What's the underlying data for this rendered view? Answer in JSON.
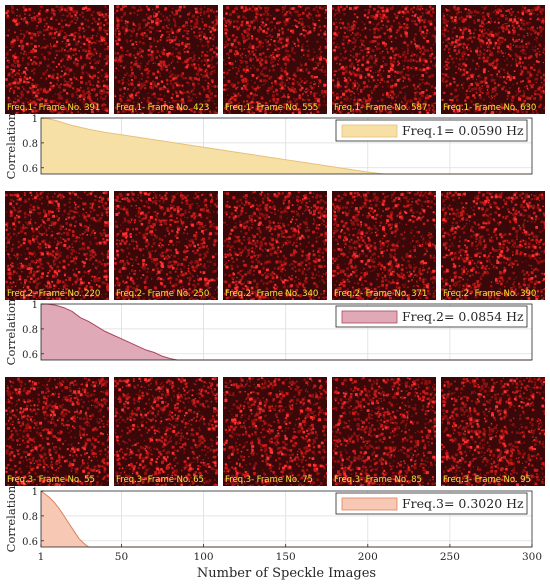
{
  "panels": [
    {
      "frame_labels": [
        "Freq.1- Frame No. 391",
        "Freq.1- Frame No. 423",
        "Freq.1- Frame No. 555",
        "Freq.1- Frame No. 587",
        "Freq.1- Frame No. 630"
      ],
      "chart": {
        "type": "area",
        "ylabel": "Correlation",
        "legend": "Freq.1= 0.0590 Hz",
        "legend_placement": "top-right",
        "fill_color": "#f7e0a6",
        "line_color": "#e8c178",
        "x": [
          1,
          5,
          10,
          20,
          30,
          40,
          50,
          60,
          70,
          80,
          90,
          100,
          110,
          120,
          130,
          140,
          150,
          160,
          170,
          180,
          190,
          200,
          210,
          215,
          300
        ],
        "y": [
          1.0,
          0.995,
          0.98,
          0.94,
          0.91,
          0.885,
          0.865,
          0.845,
          0.825,
          0.805,
          0.785,
          0.765,
          0.745,
          0.725,
          0.705,
          0.685,
          0.665,
          0.645,
          0.625,
          0.605,
          0.585,
          0.565,
          0.55,
          0.55,
          0.55
        ]
      }
    },
    {
      "frame_labels": [
        "Freq.2- Frame No. 220",
        "Freq.2- Frame No. 250",
        "Freq.2- Frame No. 340",
        "Freq.2- Frame No. 371",
        "Freq.2- Frame No. 390"
      ],
      "chart": {
        "type": "area",
        "ylabel": "Correlation",
        "legend": "Freq.2= 0.0854 Hz",
        "legend_placement": "top-right",
        "fill_color": "#e0a9b7",
        "line_color": "#a8485f",
        "x": [
          1,
          5,
          10,
          15,
          20,
          25,
          30,
          35,
          40,
          45,
          50,
          55,
          60,
          65,
          70,
          75,
          80,
          84,
          300
        ],
        "y": [
          1.0,
          1.0,
          0.99,
          0.97,
          0.94,
          0.89,
          0.86,
          0.82,
          0.78,
          0.75,
          0.72,
          0.69,
          0.66,
          0.63,
          0.61,
          0.58,
          0.56,
          0.55,
          0.55
        ]
      }
    },
    {
      "frame_labels": [
        "Freq.3- Frame No. 55",
        "Freq.3- Frame No. 65",
        "Freq.3- Frame No. 75",
        "Freq.3- Frame No. 85",
        "Freq.3- Frame No. 95"
      ],
      "chart": {
        "type": "area",
        "ylabel": "Correlation",
        "legend": "Freq.3= 0.3020 Hz",
        "legend_placement": "top-right",
        "fill_color": "#f7c8b4",
        "line_color": "#d9825f",
        "x": [
          1,
          3,
          6,
          9,
          12,
          15,
          18,
          21,
          24,
          27,
          30,
          300
        ],
        "y": [
          1.0,
          0.98,
          0.95,
          0.91,
          0.86,
          0.8,
          0.74,
          0.68,
          0.62,
          0.58,
          0.55,
          0.55
        ]
      }
    }
  ],
  "chart_data": [
    {
      "type": "area",
      "ylabel": "Correlation",
      "xlim": [
        1,
        300
      ],
      "ylim": [
        0.55,
        1
      ],
      "yticks": [
        0.6,
        0.8,
        1
      ],
      "xticks": [],
      "grid": true,
      "series": [
        {
          "name": "Freq.1= 0.0590 Hz"
        }
      ]
    },
    {
      "type": "area",
      "ylabel": "Correlation",
      "xlim": [
        1,
        300
      ],
      "ylim": [
        0.55,
        1
      ],
      "yticks": [
        0.6,
        0.8,
        1
      ],
      "xticks": [],
      "grid": true,
      "series": [
        {
          "name": "Freq.2= 0.0854 Hz"
        }
      ]
    },
    {
      "type": "area",
      "ylabel": "Correlation",
      "xlabel": "Number of Speckle Images",
      "xlim": [
        1,
        300
      ],
      "ylim": [
        0.55,
        1
      ],
      "yticks": [
        0.6,
        0.8,
        1
      ],
      "xticks": [
        1,
        50,
        100,
        150,
        200,
        250,
        300
      ],
      "grid": true,
      "series": [
        {
          "name": "Freq.3= 0.3020 Hz"
        }
      ]
    }
  ]
}
